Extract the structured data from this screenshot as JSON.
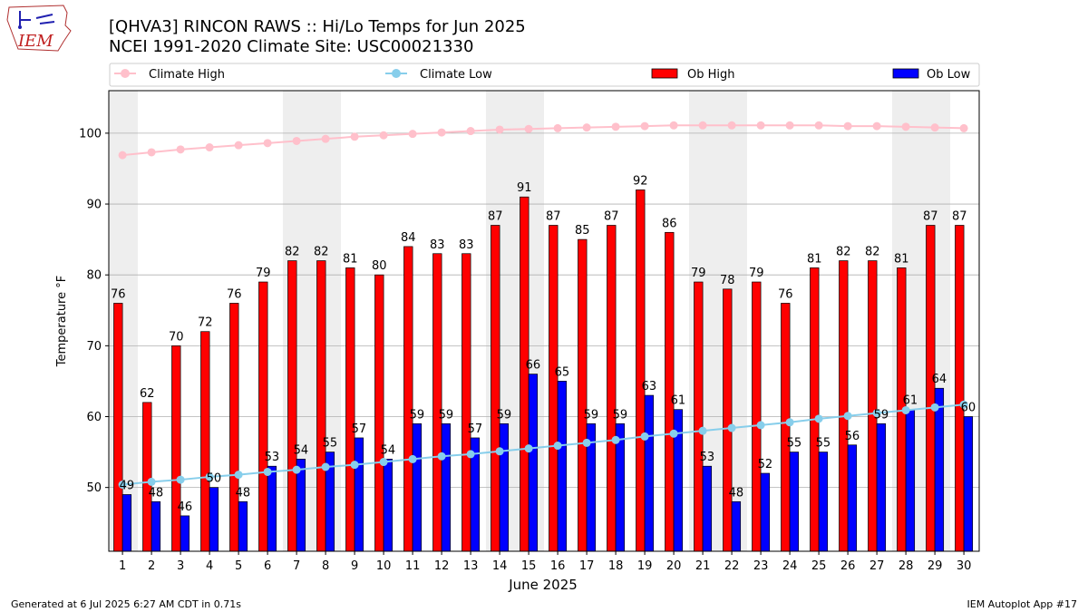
{
  "header": {
    "logo_text": "IEM",
    "title_line1": "[QHVA3] RINCON RAWS :: Hi/Lo Temps for Jun 2025",
    "title_line2": "NCEI 1991-2020 Climate Site: USC00021330"
  },
  "footer": {
    "left": "Generated at 6 Jul 2025 6:27 AM CDT in 0.71s",
    "right": "IEM Autoplot App #17"
  },
  "colors": {
    "ob_high": "#ff0000",
    "ob_low": "#0000ff",
    "climate_high": "#ffc0cb",
    "climate_low": "#87ceeb",
    "weekend_shade": "#eeeeee",
    "grid": "#b0b0b0"
  },
  "chart_data": {
    "type": "bar",
    "title": "[QHVA3] RINCON RAWS :: Hi/Lo Temps for Jun 2025",
    "subtitle": "NCEI 1991-2020 Climate Site: USC00021330",
    "xlabel": "June 2025",
    "ylabel": "Temperature °F",
    "ylim": [
      41,
      106
    ],
    "yticks": [
      50,
      60,
      70,
      80,
      90,
      100
    ],
    "grid": true,
    "legend_position": "top",
    "categories": [
      "1",
      "2",
      "3",
      "4",
      "5",
      "6",
      "7",
      "8",
      "9",
      "10",
      "11",
      "12",
      "13",
      "14",
      "15",
      "16",
      "17",
      "18",
      "19",
      "20",
      "21",
      "22",
      "23",
      "24",
      "25",
      "26",
      "27",
      "28",
      "29",
      "30"
    ],
    "weekend_days": [
      1,
      7,
      8,
      14,
      15,
      21,
      22,
      28,
      29
    ],
    "series": [
      {
        "name": "Ob High",
        "kind": "bar",
        "values": [
          76,
          62,
          70,
          72,
          76,
          79,
          82,
          82,
          81,
          80,
          84,
          83,
          83,
          87,
          91,
          87,
          85,
          87,
          92,
          86,
          79,
          78,
          79,
          76,
          81,
          82,
          82,
          81,
          87,
          87
        ]
      },
      {
        "name": "Ob Low",
        "kind": "bar",
        "values": [
          49,
          48,
          46,
          50,
          48,
          53,
          54,
          55,
          57,
          54,
          59,
          59,
          57,
          59,
          66,
          65,
          59,
          59,
          63,
          61,
          53,
          48,
          52,
          55,
          55,
          56,
          59,
          61,
          64,
          60
        ]
      },
      {
        "name": "Climate High",
        "kind": "line",
        "values": [
          96.9,
          97.3,
          97.7,
          98.0,
          98.3,
          98.6,
          98.9,
          99.2,
          99.5,
          99.7,
          99.9,
          100.1,
          100.3,
          100.5,
          100.6,
          100.7,
          100.8,
          100.9,
          101.0,
          101.1,
          101.1,
          101.1,
          101.1,
          101.1,
          101.1,
          101.0,
          101.0,
          100.9,
          100.8,
          100.7
        ]
      },
      {
        "name": "Climate Low",
        "kind": "line",
        "values": [
          50.4,
          50.8,
          51.1,
          51.5,
          51.8,
          52.2,
          52.5,
          52.9,
          53.2,
          53.6,
          54.0,
          54.4,
          54.7,
          55.1,
          55.5,
          55.9,
          56.3,
          56.7,
          57.2,
          57.6,
          58.0,
          58.4,
          58.8,
          59.2,
          59.7,
          60.1,
          60.5,
          60.9,
          61.3,
          61.7
        ]
      }
    ],
    "legend": [
      "Climate High",
      "Climate Low",
      "Ob High",
      "Ob Low"
    ]
  }
}
